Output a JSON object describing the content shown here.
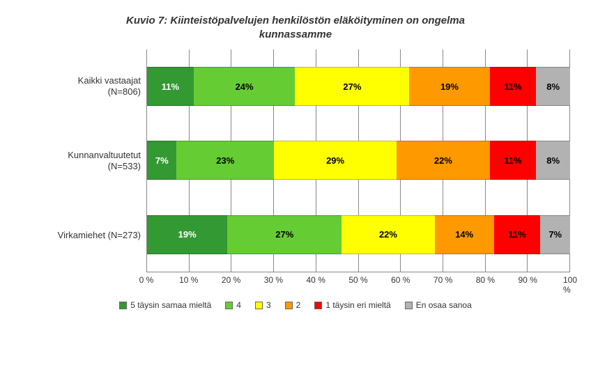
{
  "chart": {
    "type": "stacked-horizontal-bar",
    "title_line1": "Kuvio 7: Kiinteistöpalvelujen henkilöstön eläköityminen on ongelma",
    "title_line2": "kunnassamme",
    "title_fontsize": 15,
    "title_color": "#333333",
    "background_color": "#ffffff",
    "grid_color": "#888888",
    "xlim": [
      0,
      100
    ],
    "xtick_step": 10,
    "xticks": [
      "0 %",
      "10 %",
      "20 %",
      "30 %",
      "40 %",
      "50 %",
      "60 %",
      "70 %",
      "80 %",
      "90 %",
      "100 %"
    ],
    "label_fontsize": 13,
    "value_fontsize": 13,
    "axis_fontsize": 12,
    "legend_fontsize": 12,
    "text_color": "#333333",
    "value_label_colors": {
      "on_dark_green": "#ffffff",
      "default": "#000000"
    },
    "series": [
      {
        "key": "s5",
        "label": "5 täysin samaa mieltä",
        "color": "#339933"
      },
      {
        "key": "s4",
        "label": "4",
        "color": "#66cc33"
      },
      {
        "key": "s3",
        "label": "3",
        "color": "#ffff00"
      },
      {
        "key": "s2",
        "label": "2",
        "color": "#ff9900"
      },
      {
        "key": "s1",
        "label": "1 täysin eri mieltä",
        "color": "#ff0000"
      },
      {
        "key": "dk",
        "label": "En osaa sanoa",
        "color": "#b2b2b2"
      }
    ],
    "categories": [
      {
        "label_line1": "Kaikki vastaajat",
        "label_line2": "(N=806)",
        "values": {
          "s5": 11,
          "s4": 24,
          "s3": 27,
          "s2": 19,
          "s1": 11,
          "dk": 8
        }
      },
      {
        "label_line1": "Kunnanvaltuutetut",
        "label_line2": "(N=533)",
        "values": {
          "s5": 7,
          "s4": 23,
          "s3": 29,
          "s2": 22,
          "s1": 11,
          "dk": 8
        }
      },
      {
        "label_line1": "Virkamiehet (N=273)",
        "label_line2": "",
        "values": {
          "s5": 19,
          "s4": 27,
          "s3": 22,
          "s2": 14,
          "s1": 11,
          "dk": 7
        }
      }
    ]
  }
}
